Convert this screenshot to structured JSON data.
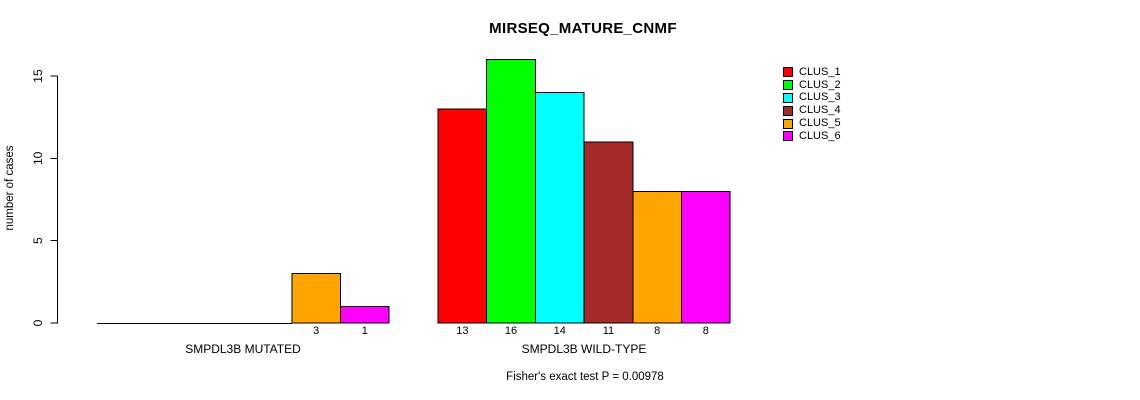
{
  "chart_data": {
    "type": "bar",
    "title": "MIRSEQ_MATURE_CNMF",
    "ylabel": "number of cases",
    "xlabel": "",
    "ylim": [
      0,
      15
    ],
    "yticks": [
      0,
      5,
      10,
      15
    ],
    "grid": false,
    "legend_position": "right",
    "categories": [
      "SMPDL3B MUTATED",
      "SMPDL3B WILD-TYPE"
    ],
    "series": [
      {
        "name": "CLUS_1",
        "color": "#FF0000",
        "values": [
          0,
          13
        ]
      },
      {
        "name": "CLUS_2",
        "color": "#00FF00",
        "values": [
          0,
          16
        ]
      },
      {
        "name": "CLUS_3",
        "color": "#00FFFF",
        "values": [
          0,
          14
        ]
      },
      {
        "name": "CLUS_4",
        "color": "#A52A2A",
        "values": [
          0,
          11
        ]
      },
      {
        "name": "CLUS_5",
        "color": "#FFA500",
        "values": [
          3,
          8
        ]
      },
      {
        "name": "CLUS_6",
        "color": "#FF00FF",
        "values": [
          1,
          8
        ]
      }
    ],
    "bar_value_labels": [
      [
        null,
        null,
        null,
        null,
        "3",
        "1"
      ],
      [
        "13",
        "16",
        "14",
        "11",
        "8",
        "8"
      ]
    ],
    "annotation": "Fisher's exact test P = 0.00978"
  }
}
